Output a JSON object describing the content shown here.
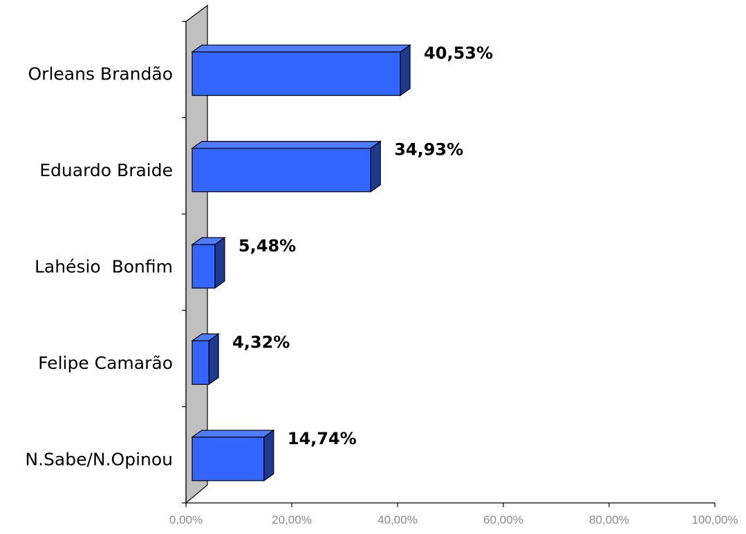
{
  "chart_data": {
    "type": "bar",
    "orientation": "horizontal",
    "three_d": true,
    "categories": [
      "Orleans Brandão",
      "Eduardo Braide",
      "Lahésio  Bonfim",
      "Felipe Camarão",
      "N.Sabe/N.Opinou"
    ],
    "values": [
      40.53,
      34.93,
      5.48,
      4.32,
      14.74
    ],
    "value_labels": [
      "40,53%",
      "34,93%",
      "5,48%",
      "4,32%",
      "14,74%"
    ],
    "xlim": [
      0,
      100
    ],
    "xticks": [
      0,
      20,
      40,
      60,
      80,
      100
    ],
    "xtick_labels": [
      "0,00%",
      "20,00%",
      "40,00%",
      "60,00%",
      "80,00%",
      "100,00%"
    ],
    "title": "",
    "xlabel": "",
    "ylabel": "",
    "grid": false,
    "legend": "none",
    "colors": {
      "bar_front": "#3366ff",
      "bar_top": "#4f7dff",
      "bar_side": "#1f3a8a",
      "wall": "#c0c0c0",
      "axis": "#000000",
      "tick_text": "#8a8a8a"
    }
  }
}
